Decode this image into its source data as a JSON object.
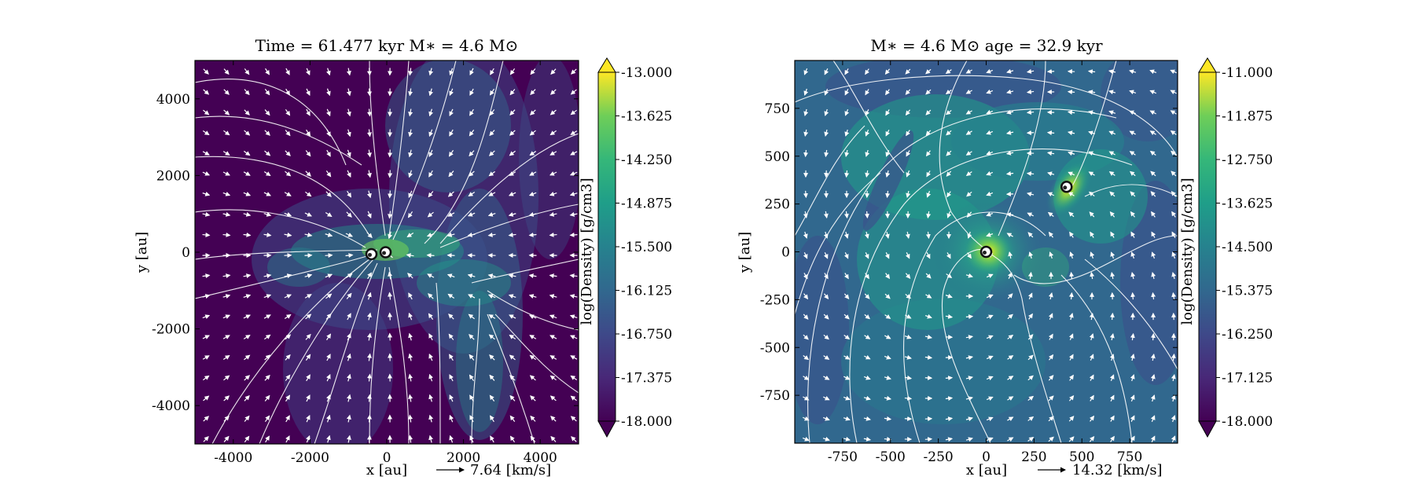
{
  "chart_data": [
    {
      "type": "heatmap",
      "title": "Time = 61.477 kyr    M∗ = 4.6 M⊙",
      "xlabel": "x [au]",
      "ylabel": "y [au]",
      "xlim": [
        -5000,
        5000
      ],
      "ylim": [
        -5000,
        5000
      ],
      "xticks": [
        -4000,
        -2000,
        0,
        2000,
        4000
      ],
      "yticks": [
        -4000,
        -2000,
        0,
        2000,
        4000
      ],
      "colorbar": {
        "label": "log(Density) [g/cm3]",
        "range": [
          -18.0,
          -13.0
        ],
        "ticks": [
          "-13.000",
          "-13.625",
          "-14.250",
          "-14.875",
          "-15.500",
          "-16.125",
          "-16.750",
          "-17.375",
          "-18.000"
        ],
        "colormap": "viridis"
      },
      "vector_key": {
        "label": "7.64 [km/s]"
      },
      "sinks": [
        {
          "x": -400,
          "y": -50
        },
        {
          "x": -30,
          "y": 0
        }
      ]
    },
    {
      "type": "heatmap",
      "title": "M∗ = 4.6 M⊙         age = 32.9 kyr",
      "xlabel": "x [au]",
      "ylabel": "y [au]",
      "xlim": [
        -1000,
        1000
      ],
      "ylim": [
        -1000,
        1000
      ],
      "xticks": [
        -750,
        -500,
        -250,
        0,
        250,
        500,
        750
      ],
      "yticks": [
        -750,
        -500,
        -250,
        0,
        250,
        500,
        750
      ],
      "colorbar": {
        "label": "log(Density) [g/cm3]",
        "range": [
          -18.0,
          -11.0
        ],
        "ticks": [
          "-11.000",
          "-11.875",
          "-12.750",
          "-13.625",
          "-14.500",
          "-15.375",
          "-16.250",
          "-17.125",
          "-18.000"
        ],
        "colormap": "viridis"
      },
      "vector_key": {
        "label": "14.32 [km/s]"
      },
      "sinks": [
        {
          "x": 0,
          "y": 0
        },
        {
          "x": 420,
          "y": 340
        }
      ]
    }
  ]
}
